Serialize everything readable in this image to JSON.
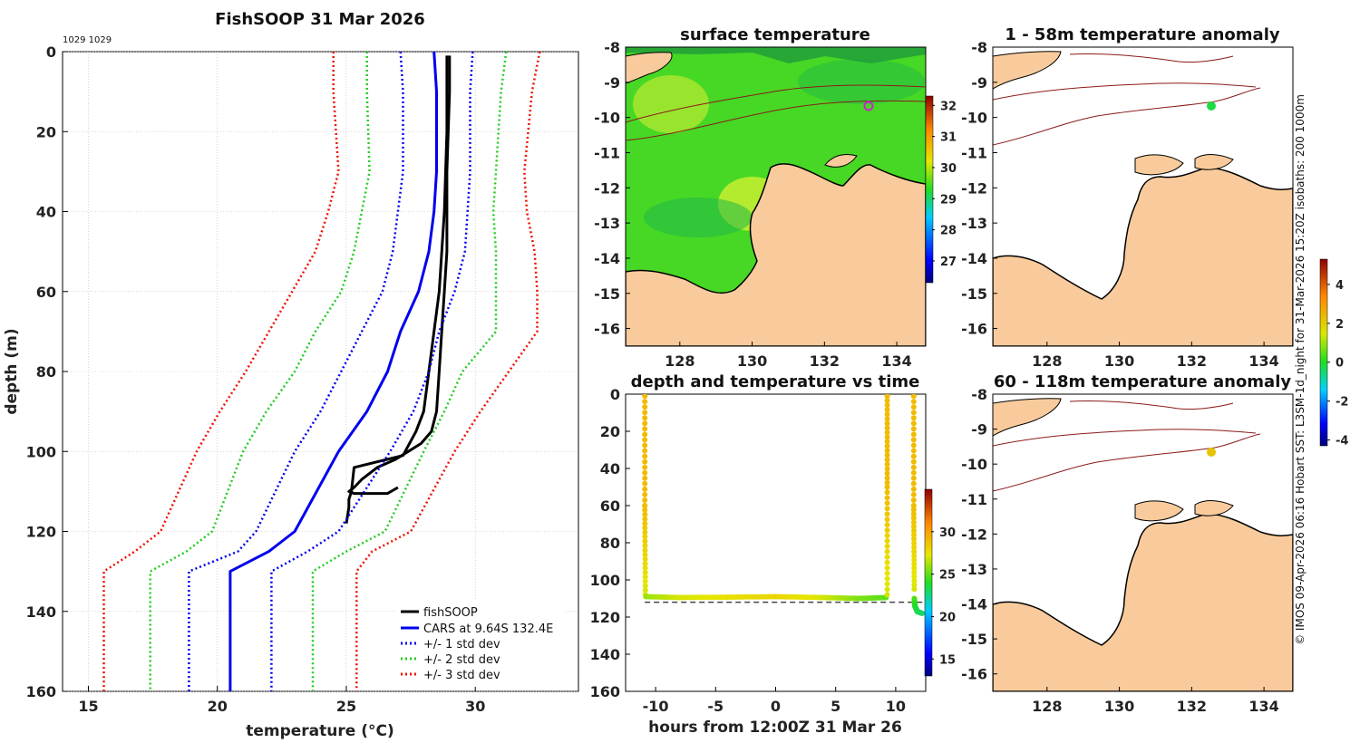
{
  "footer": {
    "credit": "© IMOS 09-Apr-2026 06:16 Hobart SST: L3SM-1d_night for 31-Mar-2026 15:20Z isobaths: 200  1000m"
  },
  "colors": {
    "fish": "#000000",
    "cars": "#0000ee",
    "std1": "#0000ee",
    "std2": "#22cc22",
    "std3": "#ee1100",
    "land": "#f9cb9c",
    "sea_sst": "#44dd22",
    "grid": "#bbbbbb"
  },
  "chart_data": [
    {
      "id": "profile",
      "type": "line",
      "title": "FishSOOP 31 Mar 2026",
      "annotation": "1029 1029",
      "xlabel": "temperature (°C)",
      "ylabel": "depth (m)",
      "xlim": [
        14,
        34
      ],
      "ylim": [
        0,
        160
      ],
      "y_reversed": true,
      "grid": true,
      "xticks": [
        "15",
        "20",
        "25",
        "30"
      ],
      "xtick_values": [
        15,
        20,
        25,
        30
      ],
      "yticks": [
        "0",
        "20",
        "40",
        "60",
        "80",
        "100",
        "120",
        "140",
        "160"
      ],
      "ytick_values": [
        0,
        20,
        40,
        60,
        80,
        100,
        120,
        140,
        160
      ],
      "legend_position": "bottom-right",
      "legend": [
        "fishSOOP",
        "CARS at 9.64S 132.4E",
        "+/- 1 std dev",
        "+/- 2 std dev",
        "+/- 3 std dev"
      ],
      "series": [
        {
          "name": "fishSOOP",
          "style": "solid",
          "color_key": "fish",
          "x": [
            29.0,
            29.0,
            28.9,
            28.9,
            28.8,
            28.7,
            28.6,
            28.5,
            28.3,
            27.9,
            27.4,
            26.9,
            26.2,
            25.6,
            25.3,
            25.1,
            25.3,
            26.6,
            27.0
          ],
          "y": [
            1,
            10,
            30,
            50,
            60,
            70,
            80,
            90,
            95,
            98,
            100,
            102,
            104,
            107,
            109,
            110,
            110.5,
            110.5,
            109
          ]
        },
        {
          "name": "fishSOOP (up)",
          "style": "solid",
          "color_key": "fish",
          "x": [
            25.0,
            25.1,
            25.1,
            25.2,
            25.3,
            27.2,
            27.7,
            28.0,
            28.2,
            28.4,
            28.6,
            28.8,
            28.9,
            28.9
          ],
          "y": [
            118,
            114,
            112,
            110,
            104,
            101,
            95,
            90,
            80,
            70,
            60,
            40,
            20,
            1
          ]
        },
        {
          "name": "CARS at 9.64S 132.4E",
          "style": "solid",
          "color_key": "cars",
          "x": [
            28.4,
            28.5,
            28.5,
            28.4,
            28.2,
            27.8,
            27.1,
            26.6,
            25.8,
            24.7,
            23.0,
            22.0,
            20.5,
            20.5
          ],
          "y": [
            0,
            10,
            30,
            40,
            50,
            60,
            70,
            80,
            90,
            100,
            120,
            125,
            130,
            160
          ]
        },
        {
          "name": "-1 std dev",
          "style": "dotted",
          "color_key": "std1",
          "x": [
            27.1,
            27.2,
            27.2,
            27.0,
            26.8,
            26.4,
            25.6,
            24.8,
            24.0,
            23.0,
            21.5,
            20.8,
            18.9,
            18.9
          ],
          "y": [
            0,
            10,
            30,
            40,
            50,
            60,
            70,
            80,
            90,
            100,
            120,
            125,
            130,
            160
          ]
        },
        {
          "name": "+1 std dev",
          "style": "dotted",
          "color_key": "std1",
          "x": [
            29.9,
            29.8,
            29.8,
            29.7,
            29.6,
            29.2,
            28.6,
            28.2,
            27.6,
            26.7,
            24.7,
            23.5,
            22.1,
            22.1
          ],
          "y": [
            0,
            10,
            30,
            40,
            50,
            60,
            70,
            80,
            90,
            100,
            120,
            125,
            130,
            160
          ]
        },
        {
          "name": "-2 std dev",
          "style": "dotted",
          "color_key": "std2",
          "x": [
            25.8,
            25.8,
            25.9,
            25.6,
            25.3,
            24.8,
            23.8,
            23.0,
            21.9,
            21.0,
            19.8,
            18.8,
            17.4,
            17.4
          ],
          "y": [
            0,
            10,
            30,
            40,
            50,
            60,
            70,
            80,
            90,
            100,
            120,
            125,
            130,
            160
          ]
        },
        {
          "name": "+2 std dev",
          "style": "dotted",
          "color_key": "std2",
          "x": [
            31.2,
            31.0,
            30.8,
            30.7,
            30.8,
            30.8,
            30.8,
            29.5,
            28.8,
            28.0,
            26.5,
            25.0,
            23.7,
            23.7
          ],
          "y": [
            0,
            10,
            30,
            40,
            50,
            60,
            70,
            80,
            90,
            100,
            120,
            125,
            130,
            160
          ]
        },
        {
          "name": "-3 std dev",
          "style": "dotted",
          "color_key": "std3",
          "x": [
            24.5,
            24.5,
            24.7,
            24.3,
            23.8,
            22.9,
            22.0,
            21.1,
            20.1,
            19.2,
            17.8,
            16.8,
            15.6,
            15.6
          ],
          "y": [
            0,
            10,
            30,
            40,
            50,
            60,
            70,
            80,
            90,
            100,
            120,
            125,
            130,
            160
          ]
        },
        {
          "name": "+3 std dev",
          "style": "dotted",
          "color_key": "std3",
          "x": [
            32.5,
            32.2,
            31.9,
            32.0,
            32.3,
            32.4,
            32.4,
            31.3,
            30.2,
            29.2,
            27.5,
            26.0,
            25.4,
            25.4
          ],
          "y": [
            0,
            10,
            30,
            40,
            50,
            60,
            70,
            80,
            90,
            100,
            120,
            125,
            130,
            160
          ]
        }
      ]
    },
    {
      "id": "sst_map",
      "type": "heatmap",
      "title": "surface temperature",
      "xlim": [
        126.5,
        134.8
      ],
      "ylim": [
        -16.5,
        -8
      ],
      "xticks": [
        "128",
        "130",
        "132",
        "134"
      ],
      "xtick_values": [
        128,
        130,
        132,
        134
      ],
      "yticks": [
        "-8",
        "-9",
        "-10",
        "-11",
        "-12",
        "-13",
        "-14",
        "-15",
        "-16"
      ],
      "ytick_values": [
        -8,
        -9,
        -10,
        -11,
        -12,
        -13,
        -14,
        -15,
        -16
      ],
      "colorbar": {
        "range": [
          26.3,
          32.3
        ],
        "ticks": [
          "27",
          "28",
          "29",
          "30",
          "31",
          "32"
        ],
        "tick_values": [
          27,
          28,
          29,
          30,
          31,
          32
        ]
      },
      "marker": {
        "lon": 132.4,
        "lat": -9.64,
        "shape": "open-circle",
        "color": "#cc22cc"
      }
    },
    {
      "id": "depth_time",
      "type": "scatter",
      "title": "depth and temperature vs time",
      "xlabel": "hours from 12:00Z 31 Mar 26",
      "xlim": [
        -12.5,
        12.5
      ],
      "ylim": [
        0,
        160
      ],
      "y_reversed": true,
      "xticks": [
        "-10",
        "-5",
        "0",
        "5",
        "10"
      ],
      "xtick_values": [
        -10,
        -5,
        0,
        5,
        10
      ],
      "yticks": [
        "0",
        "20",
        "40",
        "60",
        "80",
        "100",
        "120",
        "140",
        "160"
      ],
      "ytick_values": [
        0,
        20,
        40,
        60,
        80,
        100,
        120,
        140,
        160
      ],
      "bottom_dashed_line_depth": 112,
      "colorbar": {
        "range": [
          13,
          35
        ],
        "ticks": [
          "15",
          "20",
          "25",
          "30"
        ],
        "tick_values": [
          15,
          20,
          25,
          30
        ]
      },
      "segments": [
        {
          "x": [
            -10.9,
            -10.9,
            -10.85
          ],
          "y": [
            1,
            60,
            108
          ],
          "temp": [
            29,
            29,
            27
          ]
        },
        {
          "x": [
            -10.8,
            -8,
            -4,
            0,
            4,
            7,
            9.2
          ],
          "y": [
            109,
            109.5,
            109.3,
            109,
            109.5,
            110,
            109.5
          ],
          "temp": [
            26,
            27,
            27.5,
            28,
            27,
            25.5,
            25
          ]
        },
        {
          "x": [
            9.3,
            9.3,
            9.3
          ],
          "y": [
            108,
            50,
            1
          ],
          "temp": [
            27,
            29,
            29
          ]
        },
        {
          "x": [
            11.5,
            11.5,
            11.55
          ],
          "y": [
            1,
            60,
            105
          ],
          "temp": [
            29,
            29,
            27
          ]
        },
        {
          "x": [
            11.55,
            11.6,
            11.8,
            12.2
          ],
          "y": [
            110,
            114,
            117,
            118
          ],
          "temp": [
            25,
            24,
            23.5,
            23
          ]
        }
      ]
    },
    {
      "id": "anom_surface",
      "type": "heatmap",
      "title": "1 - 58m temperature anomaly",
      "xlim": [
        126.5,
        134.8
      ],
      "ylim": [
        -16.5,
        -8
      ],
      "xticks": [
        "128",
        "130",
        "132",
        "134"
      ],
      "xtick_values": [
        128,
        130,
        132,
        134
      ],
      "yticks": [
        "-8",
        "-9",
        "-10",
        "-11",
        "-12",
        "-13",
        "-14",
        "-15",
        "-16"
      ],
      "ytick_values": [
        -8,
        -9,
        -10,
        -11,
        -12,
        -13,
        -14,
        -15,
        -16
      ],
      "marker": {
        "lon": 132.4,
        "lat": -9.64,
        "anomaly": -0.2
      }
    },
    {
      "id": "anom_deep",
      "type": "heatmap",
      "title": "60 - 118m temperature anomaly",
      "xlim": [
        126.5,
        134.8
      ],
      "ylim": [
        -16.5,
        -8
      ],
      "xticks": [
        "128",
        "130",
        "132",
        "134"
      ],
      "xtick_values": [
        128,
        130,
        132,
        134
      ],
      "yticks": [
        "-8",
        "-9",
        "-10",
        "-11",
        "-12",
        "-13",
        "-14",
        "-15",
        "-16"
      ],
      "ytick_values": [
        -8,
        -9,
        -10,
        -11,
        -12,
        -13,
        -14,
        -15,
        -16
      ],
      "marker": {
        "lon": 132.4,
        "lat": -9.64,
        "anomaly": 2.2
      },
      "colorbar": {
        "range": [
          -4.3,
          5.3
        ],
        "ticks": [
          "-4",
          "-2",
          "0",
          "2",
          "4"
        ],
        "tick_values": [
          -4,
          -2,
          0,
          2,
          4
        ]
      }
    }
  ]
}
